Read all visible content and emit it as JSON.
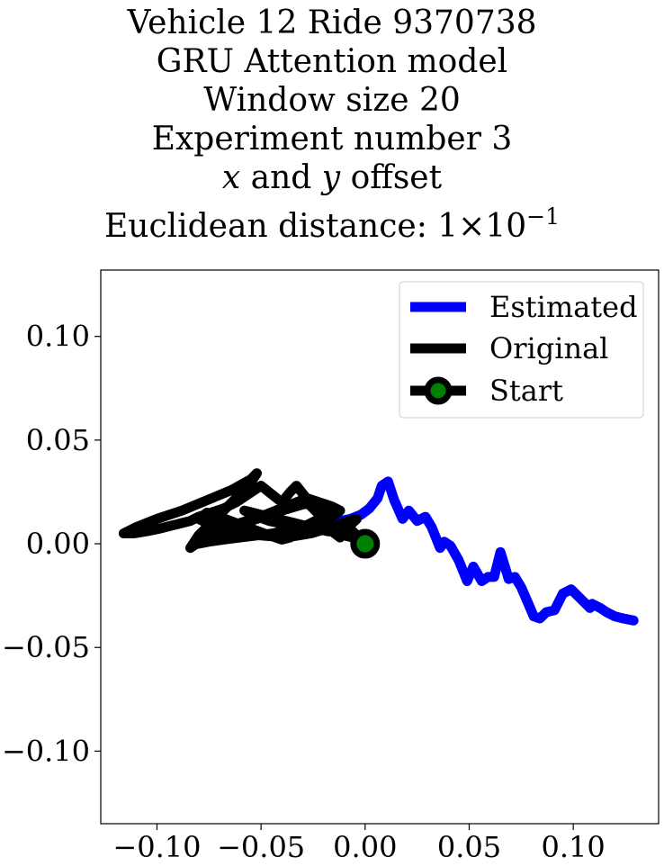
{
  "title": {
    "lines": [
      "Vehicle 12 Ride 9370738",
      "GRU Attention model",
      "Window size 20",
      "Experiment number 3"
    ],
    "offset_x_var": "x",
    "offset_and": " and ",
    "offset_y_var": "y",
    "offset_suffix": " offset",
    "distance_prefix": "Euclidean distance: 1×10",
    "distance_exponent": "−1"
  },
  "chart_data": {
    "type": "line",
    "xlim": [
      -0.127,
      0.141
    ],
    "ylim": [
      -0.135,
      0.132
    ],
    "grid": false,
    "legend_placement": "top-right",
    "xticks": [
      -0.1,
      -0.05,
      0.0,
      0.05,
      0.1
    ],
    "xtick_labels": [
      "−0.10",
      "−0.05",
      "0.00",
      "0.05",
      "0.10"
    ],
    "yticks": [
      0.1,
      0.05,
      0.0,
      -0.05,
      -0.1
    ],
    "ytick_labels": [
      "0.10",
      "0.05",
      "0.00",
      "−0.05",
      "−0.10"
    ],
    "series": [
      {
        "name": "Estimated",
        "color": "#0000ff",
        "x": [
          -0.012,
          -0.007,
          -0.002,
          0.002,
          0.006,
          0.008,
          0.011,
          0.014,
          0.018,
          0.021,
          0.025,
          0.029,
          0.032,
          0.036,
          0.038,
          0.041,
          0.045,
          0.049,
          0.052,
          0.056,
          0.059,
          0.062,
          0.065,
          0.069,
          0.072,
          0.075,
          0.078,
          0.081,
          0.084,
          0.087,
          0.091,
          0.095,
          0.099,
          0.103,
          0.108,
          0.109,
          0.113,
          0.116,
          0.12,
          0.124,
          0.129
        ],
        "y": [
          0.011,
          0.012,
          0.014,
          0.017,
          0.022,
          0.028,
          0.03,
          0.021,
          0.012,
          0.016,
          0.011,
          0.013,
          0.008,
          -0.002,
          0.001,
          -0.001,
          -0.008,
          -0.018,
          -0.011,
          -0.018,
          -0.016,
          -0.016,
          -0.004,
          -0.017,
          -0.016,
          -0.021,
          -0.028,
          -0.035,
          -0.036,
          -0.033,
          -0.032,
          -0.024,
          -0.022,
          -0.026,
          -0.031,
          -0.029,
          -0.031,
          -0.033,
          -0.035,
          -0.036,
          -0.037
        ]
      },
      {
        "name": "Original",
        "color": "#000000",
        "x": [
          0.0,
          -0.004,
          -0.008,
          -0.012,
          -0.016,
          -0.019,
          -0.022,
          -0.026,
          -0.029,
          -0.033,
          -0.036,
          -0.04,
          -0.045,
          -0.05,
          -0.056,
          -0.062,
          -0.068,
          -0.074,
          -0.08,
          -0.084,
          -0.088,
          -0.092,
          -0.096,
          -0.1,
          -0.105,
          -0.111,
          -0.116,
          -0.11,
          -0.1,
          -0.088,
          -0.076,
          -0.064,
          -0.055,
          -0.052,
          -0.056,
          -0.062,
          -0.068,
          -0.074,
          -0.08,
          -0.084,
          -0.078,
          -0.07,
          -0.06,
          -0.048,
          -0.038,
          -0.028,
          -0.022,
          -0.018,
          -0.022,
          -0.028,
          -0.036,
          -0.044,
          -0.052,
          -0.06,
          -0.068,
          -0.075,
          -0.08,
          -0.074,
          -0.064,
          -0.052,
          -0.04,
          -0.03,
          -0.022,
          -0.016,
          -0.012,
          -0.016,
          -0.022,
          -0.028,
          -0.032,
          -0.036,
          -0.04,
          -0.046,
          -0.054,
          -0.062,
          -0.07,
          -0.076,
          -0.08,
          -0.074,
          -0.062,
          -0.05,
          -0.038,
          -0.026,
          -0.016,
          -0.008,
          -0.004,
          -0.006,
          -0.01,
          -0.014,
          -0.018,
          -0.022,
          -0.026,
          -0.03,
          -0.034,
          -0.038,
          -0.042,
          -0.046,
          -0.05,
          -0.054,
          -0.058,
          -0.054,
          -0.046,
          -0.036,
          -0.028,
          -0.02,
          -0.014,
          -0.01,
          -0.006,
          -0.004,
          -0.002,
          0.0
        ],
        "y": [
          0.0,
          0.004,
          0.008,
          0.003,
          0.006,
          0.01,
          0.014,
          0.018,
          0.023,
          0.028,
          0.025,
          0.02,
          0.024,
          0.028,
          0.024,
          0.02,
          0.017,
          0.015,
          0.013,
          0.011,
          0.01,
          0.009,
          0.008,
          0.007,
          0.006,
          0.005,
          0.005,
          0.008,
          0.012,
          0.016,
          0.021,
          0.026,
          0.031,
          0.034,
          0.028,
          0.022,
          0.016,
          0.01,
          0.004,
          -0.002,
          0.002,
          0.006,
          0.01,
          0.014,
          0.018,
          0.022,
          0.02,
          0.016,
          0.012,
          0.009,
          0.007,
          0.005,
          0.004,
          0.003,
          0.002,
          0.001,
          0.0,
          0.004,
          0.008,
          0.012,
          0.016,
          0.019,
          0.02,
          0.018,
          0.016,
          0.013,
          0.01,
          0.007,
          0.005,
          0.003,
          0.002,
          0.004,
          0.007,
          0.01,
          0.013,
          0.015,
          0.012,
          0.009,
          0.006,
          0.004,
          0.003,
          0.005,
          0.008,
          0.011,
          0.012,
          0.01,
          0.008,
          0.006,
          0.006,
          0.007,
          0.008,
          0.009,
          0.01,
          0.011,
          0.012,
          0.013,
          0.014,
          0.015,
          0.016,
          0.014,
          0.011,
          0.009,
          0.008,
          0.007,
          0.006,
          0.004,
          0.003,
          0.002,
          0.001,
          0.0
        ]
      },
      {
        "name": "Start",
        "color": "#000000",
        "marker_fill": "#008000",
        "x": [
          0.0
        ],
        "y": [
          0.0
        ]
      }
    ]
  }
}
